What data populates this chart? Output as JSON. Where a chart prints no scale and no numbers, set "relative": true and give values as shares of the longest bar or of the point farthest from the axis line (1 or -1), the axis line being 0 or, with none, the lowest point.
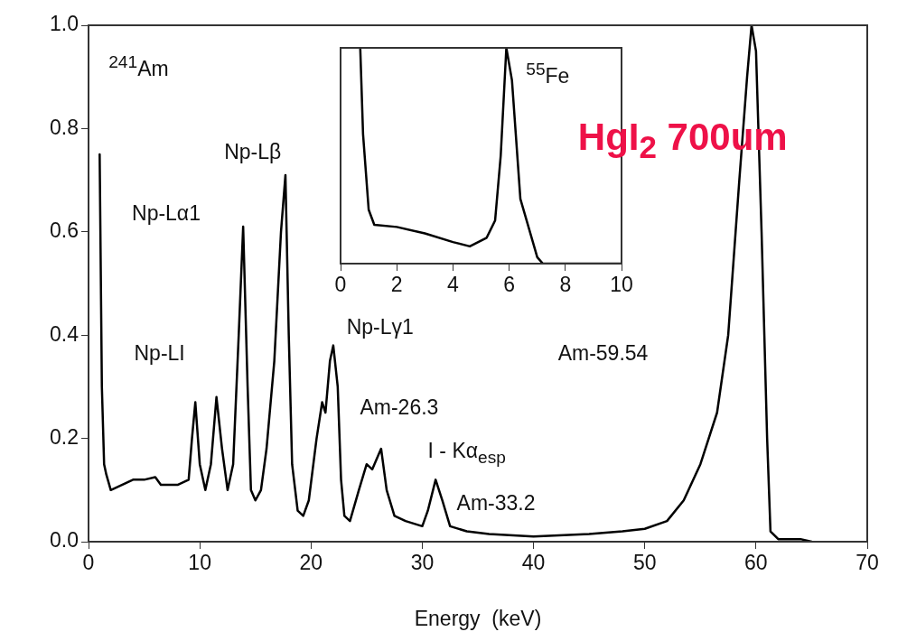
{
  "chart_data": [
    {
      "type": "line",
      "title": "HgI$_{2}$ 700um",
      "xlabel": "Energy  (keV)",
      "x": [
        1.0,
        1.2,
        1.4,
        1.6,
        2,
        3,
        4,
        5,
        6,
        6.5,
        8,
        9,
        9.3,
        9.6,
        10,
        10.5,
        11,
        11.5,
        12,
        12.5,
        13,
        13.5,
        13.9,
        14.3,
        14.6,
        15,
        15.5,
        16,
        16.7,
        17.3,
        17.7,
        18,
        18.3,
        18.8,
        19.3,
        19.8,
        20.5,
        21,
        21.3,
        21.7,
        22,
        22.4,
        22.7,
        23,
        23.5,
        24.3,
        25,
        25.5,
        26.3,
        26.8,
        27.5,
        28.5,
        30,
        30.5,
        31.2,
        31.8,
        32.5,
        34,
        36,
        40,
        45,
        48,
        50,
        52,
        53.5,
        55,
        56.5,
        57.5,
        58.5,
        59.2,
        59.6,
        60,
        60.5,
        61,
        61.3,
        62,
        64,
        65
      ],
      "values": [
        0.75,
        0.3,
        0.15,
        0.13,
        0.1,
        0.11,
        0.12,
        0.12,
        0.125,
        0.11,
        0.11,
        0.12,
        0.2,
        0.27,
        0.15,
        0.1,
        0.15,
        0.28,
        0.18,
        0.1,
        0.15,
        0.4,
        0.61,
        0.3,
        0.1,
        0.08,
        0.1,
        0.18,
        0.35,
        0.6,
        0.71,
        0.4,
        0.15,
        0.06,
        0.05,
        0.08,
        0.2,
        0.27,
        0.25,
        0.35,
        0.38,
        0.3,
        0.12,
        0.05,
        0.04,
        0.1,
        0.15,
        0.14,
        0.18,
        0.1,
        0.05,
        0.04,
        0.03,
        0.06,
        0.12,
        0.08,
        0.03,
        0.02,
        0.015,
        0.01,
        0.015,
        0.02,
        0.025,
        0.04,
        0.08,
        0.15,
        0.25,
        0.4,
        0.7,
        0.9,
        1.0,
        0.95,
        0.6,
        0.2,
        0.02,
        0.005,
        0.005,
        0
      ],
      "color": "#000000",
      "marker": "none",
      "legend": false,
      "grid": false,
      "xlim": [
        0,
        70
      ],
      "xticks": [
        0,
        10,
        20,
        30,
        40,
        50,
        60,
        70
      ],
      "ylim": [
        0,
        1
      ],
      "yticks": [
        {
          "value": 0,
          "label": "0.0"
        },
        {
          "value": 0.2,
          "label": "0.2"
        },
        {
          "value": 0.4,
          "label": "0.4"
        },
        {
          "value": 0.6,
          "label": "0.6"
        },
        {
          "value": 0.8,
          "label": "0.8"
        },
        {
          "value": 1,
          "label": "1.0"
        }
      ],
      "annotations": [
        "$^{241}$Am",
        "Np-Lα1",
        "Np-Lβ",
        "Np-LI",
        "Np-Lγ1",
        "Am-26.3",
        "I - Kα$_{esp}$",
        "Am-33.2",
        "Am-59.54"
      ]
    },
    {
      "type": "line",
      "relative": true,
      "tick_labels": "x",
      "x": [
        0.7,
        0.8,
        1.0,
        1.2,
        2,
        3,
        4,
        4.6,
        5.2,
        5.5,
        5.7,
        5.9,
        6.1,
        6.4,
        7.0,
        7.2,
        10
      ],
      "values": [
        1.0,
        0.6,
        0.25,
        0.18,
        0.17,
        0.14,
        0.1,
        0.08,
        0.12,
        0.2,
        0.5,
        1.0,
        0.85,
        0.3,
        0.03,
        0,
        0
      ],
      "color": "#000000",
      "marker": "none",
      "legend": false,
      "grid": false,
      "xlim": [
        0,
        10
      ],
      "xticks": [
        0,
        2,
        4,
        6,
        8,
        10
      ],
      "annotations": [
        "$^{55}$Fe"
      ]
    }
  ]
}
